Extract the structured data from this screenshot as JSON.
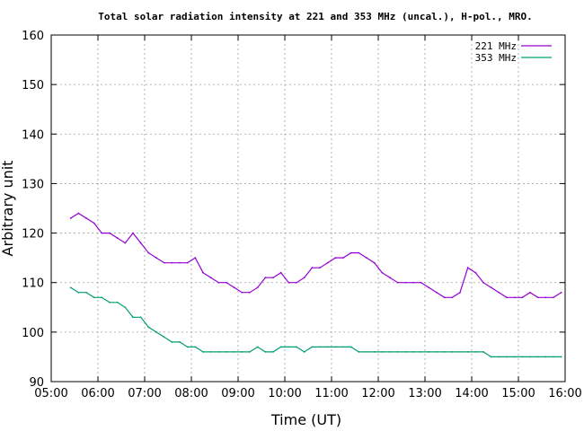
{
  "chart_data": {
    "type": "line",
    "title": "Total solar radiation intensity at 221 and 353 MHz (uncal.), H-pol., MRO.",
    "xlabel": "Time (UT)",
    "ylabel": "Arbitrary unit",
    "xlim": [
      "05:00",
      "16:00"
    ],
    "ylim": [
      90,
      160
    ],
    "xticks": [
      "05:00",
      "06:00",
      "07:00",
      "08:00",
      "09:00",
      "10:00",
      "11:00",
      "12:00",
      "13:00",
      "14:00",
      "15:00",
      "16:00"
    ],
    "yticks": [
      90,
      100,
      110,
      120,
      130,
      140,
      150,
      160
    ],
    "grid": true,
    "legend_position": "top-right",
    "series": [
      {
        "name": "221 MHz",
        "color": "#9400d3",
        "x": [
          "05:25",
          "05:35",
          "05:45",
          "05:55",
          "06:05",
          "06:15",
          "06:25",
          "06:35",
          "06:45",
          "06:55",
          "07:05",
          "07:15",
          "07:25",
          "07:35",
          "07:45",
          "07:55",
          "08:05",
          "08:15",
          "08:25",
          "08:35",
          "08:45",
          "08:55",
          "09:05",
          "09:15",
          "09:25",
          "09:35",
          "09:45",
          "09:55",
          "10:05",
          "10:15",
          "10:25",
          "10:35",
          "10:45",
          "10:55",
          "11:05",
          "11:15",
          "11:25",
          "11:35",
          "11:45",
          "11:55",
          "12:05",
          "12:15",
          "12:25",
          "12:35",
          "12:45",
          "12:55",
          "13:05",
          "13:15",
          "13:25",
          "13:35",
          "13:45",
          "13:55",
          "14:05",
          "14:15",
          "14:25",
          "14:35",
          "14:45",
          "14:55",
          "15:05",
          "15:15",
          "15:25",
          "15:35",
          "15:45",
          "15:55"
        ],
        "y": [
          123,
          124,
          123,
          122,
          120,
          120,
          119,
          118,
          120,
          118,
          116,
          115,
          114,
          114,
          114,
          114,
          115,
          112,
          111,
          110,
          110,
          109,
          108,
          108,
          109,
          111,
          111,
          112,
          110,
          110,
          111,
          113,
          113,
          114,
          115,
          115,
          116,
          116,
          115,
          114,
          112,
          111,
          110,
          110,
          110,
          110,
          109,
          108,
          107,
          107,
          108,
          113,
          112,
          110,
          109,
          108,
          107,
          107,
          107,
          108,
          107,
          107,
          107,
          108
        ]
      },
      {
        "name": "353 MHz",
        "color": "#009e73",
        "x": [
          "05:25",
          "05:35",
          "05:45",
          "05:55",
          "06:05",
          "06:15",
          "06:25",
          "06:35",
          "06:45",
          "06:55",
          "07:05",
          "07:15",
          "07:25",
          "07:35",
          "07:45",
          "07:55",
          "08:05",
          "08:15",
          "08:25",
          "08:35",
          "08:45",
          "08:55",
          "09:05",
          "09:15",
          "09:25",
          "09:35",
          "09:45",
          "09:55",
          "10:05",
          "10:15",
          "10:25",
          "10:35",
          "10:45",
          "10:55",
          "11:05",
          "11:15",
          "11:25",
          "11:35",
          "11:45",
          "11:55",
          "12:05",
          "12:15",
          "12:25",
          "12:35",
          "12:45",
          "12:55",
          "13:05",
          "13:15",
          "13:25",
          "13:35",
          "13:45",
          "13:55",
          "14:05",
          "14:15",
          "14:25",
          "14:35",
          "14:45",
          "14:55",
          "15:05",
          "15:15",
          "15:25",
          "15:35",
          "15:45",
          "15:55"
        ],
        "y": [
          109,
          108,
          108,
          107,
          107,
          106,
          106,
          105,
          103,
          103,
          101,
          100,
          99,
          98,
          98,
          97,
          97,
          96,
          96,
          96,
          96,
          96,
          96,
          96,
          97,
          96,
          96,
          97,
          97,
          97,
          96,
          97,
          97,
          97,
          97,
          97,
          97,
          96,
          96,
          96,
          96,
          96,
          96,
          96,
          96,
          96,
          96,
          96,
          96,
          96,
          96,
          96,
          96,
          96,
          95,
          95,
          95,
          95,
          95,
          95,
          95,
          95,
          95,
          95
        ]
      }
    ]
  }
}
